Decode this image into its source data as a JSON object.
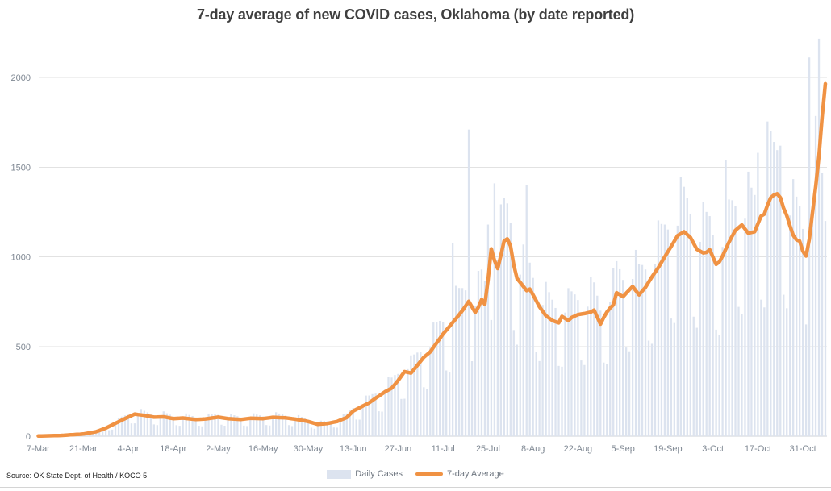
{
  "title": "7-day average of new COVID cases, Oklahoma (by date reported)",
  "source_note": "Source: OK State Dept. of Health / KOCO 5",
  "colors": {
    "bars": "#dce3ef",
    "line": "#f09243",
    "grid": "#e2e2e2",
    "axis_line": "#cdd1d7",
    "axis_text": "#7f8893",
    "title_text": "#3f3f3f"
  },
  "legend": {
    "items": [
      {
        "label": "Daily Cases",
        "type": "bar",
        "color": "#dce3ef"
      },
      {
        "label": "7-day Average",
        "type": "line",
        "color": "#f09243"
      }
    ]
  },
  "chart_data": {
    "type": "bar+line",
    "title": "7-day average of new COVID cases, Oklahoma (by date reported)",
    "xlabel": "",
    "ylabel": "",
    "x_unit": "days since 7-Mar",
    "x_tick_days": [
      0,
      14,
      28,
      42,
      56,
      70,
      84,
      98,
      112,
      126,
      140,
      154,
      168,
      182,
      196,
      210,
      224,
      238
    ],
    "x_tick_labels": [
      "7-Mar",
      "21-Mar",
      "4-Apr",
      "18-Apr",
      "2-May",
      "16-May",
      "30-May",
      "13-Jun",
      "27-Jun",
      "11-Jul",
      "25-Jul",
      "8-Aug",
      "22-Aug",
      "5-Sep",
      "19-Sep",
      "3-Oct",
      "17-Oct",
      "31-Oct"
    ],
    "y_ticks": [
      0,
      500,
      1000,
      1500,
      2000
    ],
    "ylim": [
      0,
      2230
    ],
    "days_total": 246,
    "grid": "horizontal",
    "legend_position": "bottom",
    "series": [
      {
        "name": "7-day Average",
        "type": "line",
        "color": "#f09243",
        "points": [
          [
            0,
            1
          ],
          [
            7,
            4
          ],
          [
            14,
            12
          ],
          [
            18,
            25
          ],
          [
            21,
            45
          ],
          [
            24,
            72
          ],
          [
            27,
            98
          ],
          [
            30,
            123
          ],
          [
            33,
            116
          ],
          [
            36,
            106
          ],
          [
            39,
            108
          ],
          [
            42,
            98
          ],
          [
            45,
            101
          ],
          [
            49,
            93
          ],
          [
            52,
            96
          ],
          [
            56,
            106
          ],
          [
            59,
            98
          ],
          [
            63,
            93
          ],
          [
            66,
            100
          ],
          [
            70,
            98
          ],
          [
            73,
            105
          ],
          [
            77,
            102
          ],
          [
            80,
            95
          ],
          [
            84,
            82
          ],
          [
            87,
            66
          ],
          [
            90,
            71
          ],
          [
            93,
            82
          ],
          [
            96,
            104
          ],
          [
            98,
            140
          ],
          [
            101,
            168
          ],
          [
            103,
            186
          ],
          [
            105,
            212
          ],
          [
            108,
            248
          ],
          [
            110,
            268
          ],
          [
            112,
            310
          ],
          [
            114,
            360
          ],
          [
            116,
            352
          ],
          [
            118,
            395
          ],
          [
            120,
            440
          ],
          [
            122,
            470
          ],
          [
            124,
            520
          ],
          [
            126,
            570
          ],
          [
            128,
            612
          ],
          [
            130,
            655
          ],
          [
            132,
            700
          ],
          [
            134,
            752
          ],
          [
            136,
            690
          ],
          [
            137,
            720
          ],
          [
            138,
            762
          ],
          [
            139,
            735
          ],
          [
            140,
            870
          ],
          [
            141,
            1045
          ],
          [
            142,
            980
          ],
          [
            143,
            935
          ],
          [
            144,
            1010
          ],
          [
            145,
            1088
          ],
          [
            146,
            1100
          ],
          [
            147,
            1060
          ],
          [
            148,
            955
          ],
          [
            149,
            880
          ],
          [
            150,
            858
          ],
          [
            151,
            835
          ],
          [
            152,
            812
          ],
          [
            153,
            820
          ],
          [
            154,
            788
          ],
          [
            156,
            722
          ],
          [
            158,
            672
          ],
          [
            160,
            645
          ],
          [
            162,
            632
          ],
          [
            163,
            668
          ],
          [
            165,
            645
          ],
          [
            166,
            662
          ],
          [
            168,
            678
          ],
          [
            170,
            684
          ],
          [
            172,
            692
          ],
          [
            173,
            703
          ],
          [
            175,
            625
          ],
          [
            176,
            662
          ],
          [
            177,
            692
          ],
          [
            178,
            715
          ],
          [
            179,
            732
          ],
          [
            180,
            800
          ],
          [
            182,
            778
          ],
          [
            185,
            835
          ],
          [
            187,
            788
          ],
          [
            189,
            830
          ],
          [
            191,
            888
          ],
          [
            193,
            940
          ],
          [
            195,
            1000
          ],
          [
            197,
            1058
          ],
          [
            199,
            1118
          ],
          [
            201,
            1140
          ],
          [
            203,
            1108
          ],
          [
            205,
            1042
          ],
          [
            207,
            1022
          ],
          [
            208,
            1025
          ],
          [
            209,
            1040
          ],
          [
            210,
            1000
          ],
          [
            211,
            958
          ],
          [
            212,
            972
          ],
          [
            213,
            1005
          ],
          [
            215,
            1082
          ],
          [
            217,
            1148
          ],
          [
            219,
            1178
          ],
          [
            221,
            1132
          ],
          [
            223,
            1140
          ],
          [
            225,
            1228
          ],
          [
            226,
            1238
          ],
          [
            227,
            1288
          ],
          [
            228,
            1330
          ],
          [
            229,
            1345
          ],
          [
            230,
            1352
          ],
          [
            231,
            1330
          ],
          [
            232,
            1272
          ],
          [
            233,
            1230
          ],
          [
            234,
            1172
          ],
          [
            235,
            1120
          ],
          [
            236,
            1095
          ],
          [
            237,
            1088
          ],
          [
            238,
            1032
          ],
          [
            239,
            1005
          ],
          [
            240,
            1098
          ],
          [
            241,
            1248
          ],
          [
            242,
            1395
          ],
          [
            243,
            1560
          ],
          [
            244,
            1780
          ],
          [
            245,
            1965
          ]
        ]
      },
      {
        "name": "Daily Cases",
        "type": "bar",
        "color": "#dce3ef",
        "estimation": "bar height = interpolated 7-day average × weekly reporting pattern, with directly-read spikes",
        "weekly_pattern": [
          1.12,
          0.62,
          0.58,
          1.05,
          1.28,
          1.22,
          1.18
        ],
        "spikes": {
          "129": 1075,
          "134": 1710,
          "140": 1180,
          "142": 1410,
          "152": 1400,
          "214": 1540,
          "221": 1475,
          "224": 1580,
          "227": 1755,
          "231": 1620,
          "240": 2112,
          "243": 2217,
          "244": 1470,
          "245": 1200
        }
      }
    ]
  }
}
